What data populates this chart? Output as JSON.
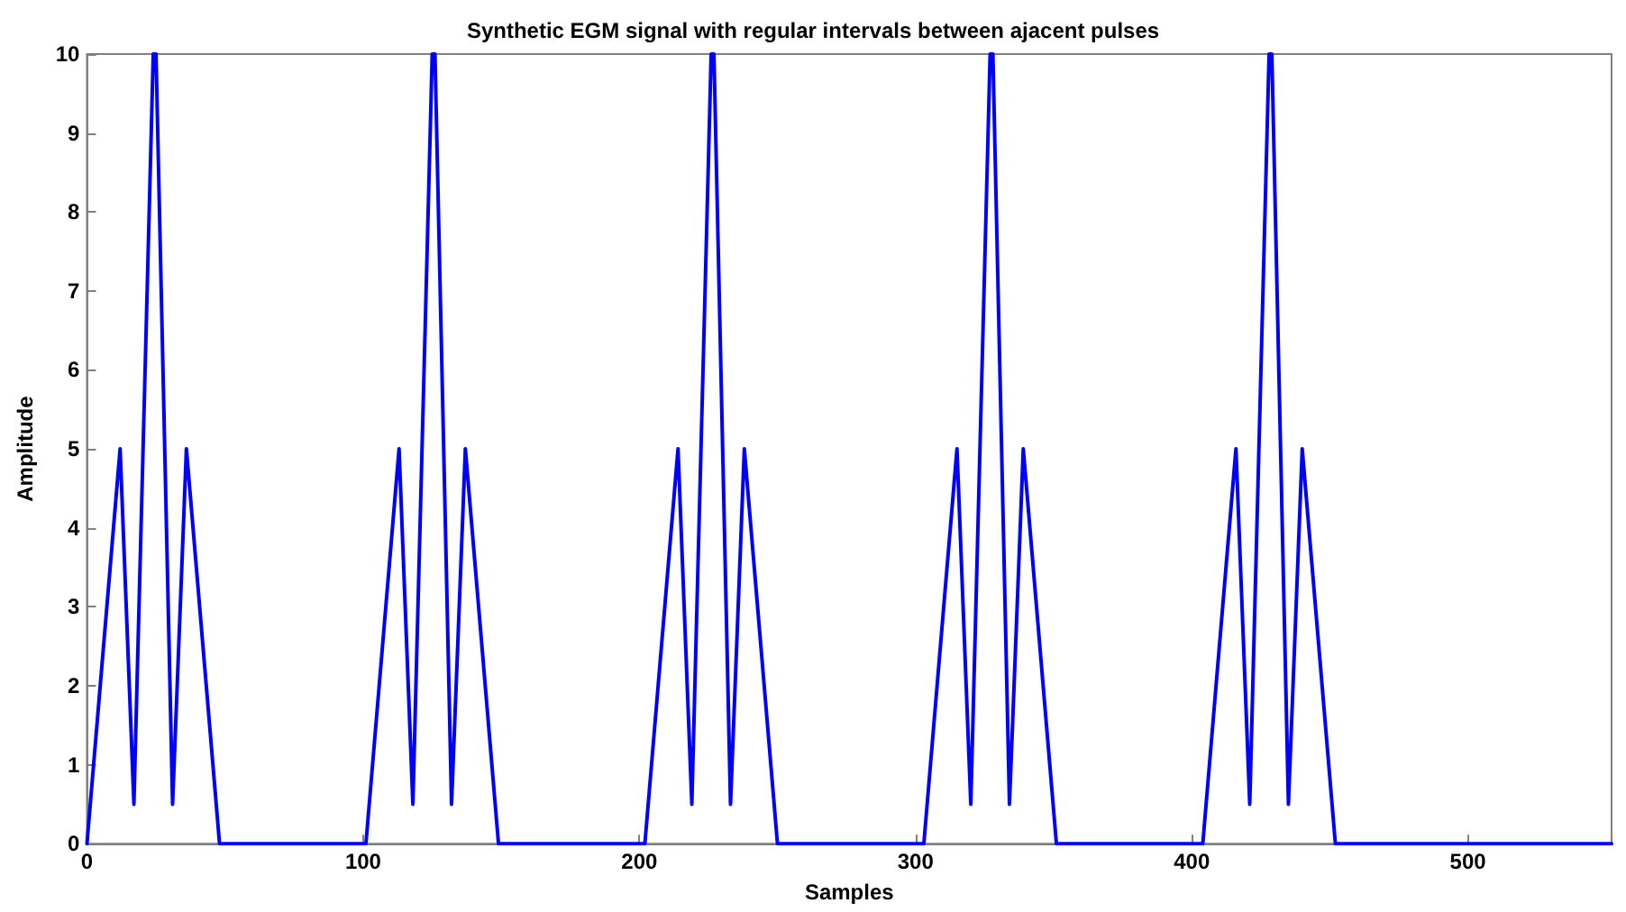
{
  "chart_data": {
    "type": "line",
    "title": "Synthetic EGM signal with regular intervals between ajacent pulses",
    "xlabel": "Samples",
    "ylabel": "Amplitude",
    "series": [
      {
        "color": "#0000ff",
        "x": [
          0,
          12,
          17,
          24,
          25,
          31,
          36,
          48,
          101,
          113,
          118,
          125,
          126,
          132,
          137,
          149,
          202,
          214,
          219,
          226,
          227,
          233,
          238,
          250,
          303,
          315,
          320,
          327,
          328,
          334,
          339,
          351,
          404,
          416,
          421,
          428,
          429,
          435,
          440,
          452,
          552
        ],
        "values": [
          0,
          5,
          0.5,
          10,
          10,
          0.5,
          5,
          0,
          0,
          5,
          0.5,
          10,
          10,
          0.5,
          5,
          0,
          0,
          5,
          0.5,
          10,
          10,
          0.5,
          5,
          0,
          0,
          5,
          0.5,
          10,
          10,
          0.5,
          5,
          0,
          0,
          5,
          0.5,
          10,
          10,
          0.5,
          5,
          0,
          0
        ]
      }
    ],
    "xlim": [
      0,
      552
    ],
    "ylim": [
      0,
      10
    ],
    "xticks": [
      0,
      100,
      200,
      300,
      400,
      500
    ],
    "yticks": [
      0,
      1,
      2,
      3,
      4,
      5,
      6,
      7,
      8,
      9,
      10
    ],
    "grid": false,
    "marker": "none",
    "line_style": "solid"
  }
}
